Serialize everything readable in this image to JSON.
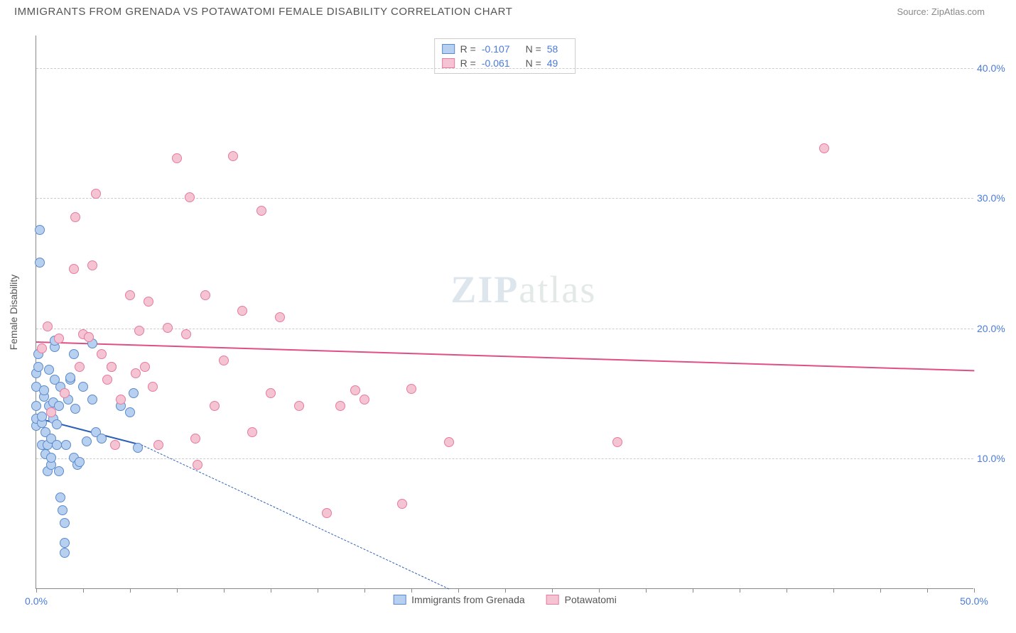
{
  "header": {
    "title": "IMMIGRANTS FROM GRENADA VS POTAWATOMI FEMALE DISABILITY CORRELATION CHART",
    "source_prefix": "Source: ",
    "source_name": "ZipAtlas.com"
  },
  "chart": {
    "type": "scatter",
    "x_axis": {
      "min": 0,
      "max": 50,
      "ticks_minor_step": 2.5,
      "label_min": "0.0%",
      "label_max": "50.0%"
    },
    "y_axis": {
      "min": 0,
      "max": 42.5,
      "title": "Female Disability",
      "gridlines": [
        {
          "value": 10,
          "label": "10.0%"
        },
        {
          "value": 20,
          "label": "20.0%"
        },
        {
          "value": 30,
          "label": "30.0%"
        },
        {
          "value": 40,
          "label": "40.0%"
        }
      ]
    },
    "watermark": {
      "part1": "ZIP",
      "part2": "atlas"
    },
    "series": [
      {
        "id": "grenada",
        "label": "Immigrants from Grenada",
        "fill": "#b8d0f0",
        "stroke": "#5a8acb",
        "trend": {
          "color": "#2d5fb8",
          "x1": 0,
          "y1": 13.2,
          "x2": 5.4,
          "y2": 11.2,
          "solid_until_x": 5.4,
          "dash_to_x": 22,
          "dash_to_y": 0
        },
        "stats": {
          "R": "-0.107",
          "N": "58"
        },
        "points": [
          [
            0.0,
            12.5
          ],
          [
            0.0,
            13.0
          ],
          [
            0.0,
            14.0
          ],
          [
            0.0,
            15.5
          ],
          [
            0.0,
            16.5
          ],
          [
            0.1,
            17.0
          ],
          [
            0.1,
            18.0
          ],
          [
            0.2,
            25.0
          ],
          [
            0.2,
            27.5
          ],
          [
            0.3,
            11.0
          ],
          [
            0.3,
            12.7
          ],
          [
            0.3,
            13.2
          ],
          [
            0.4,
            14.7
          ],
          [
            0.4,
            15.2
          ],
          [
            0.5,
            10.3
          ],
          [
            0.5,
            12.0
          ],
          [
            0.6,
            9.0
          ],
          [
            0.6,
            11.0
          ],
          [
            0.7,
            14.0
          ],
          [
            0.7,
            16.8
          ],
          [
            0.8,
            9.5
          ],
          [
            0.8,
            10.0
          ],
          [
            0.8,
            11.5
          ],
          [
            0.9,
            13.0
          ],
          [
            0.9,
            14.3
          ],
          [
            1.0,
            16.0
          ],
          [
            1.0,
            18.5
          ],
          [
            1.0,
            19.0
          ],
          [
            1.1,
            11.0
          ],
          [
            1.1,
            12.6
          ],
          [
            1.2,
            9.0
          ],
          [
            1.2,
            14.0
          ],
          [
            1.3,
            15.5
          ],
          [
            1.3,
            7.0
          ],
          [
            1.4,
            6.0
          ],
          [
            1.5,
            5.0
          ],
          [
            1.5,
            2.7
          ],
          [
            1.5,
            3.5
          ],
          [
            1.6,
            11.0
          ],
          [
            1.7,
            14.5
          ],
          [
            1.8,
            16.0
          ],
          [
            2.0,
            10.0
          ],
          [
            2.0,
            18.0
          ],
          [
            2.2,
            9.5
          ],
          [
            2.3,
            9.7
          ],
          [
            2.5,
            15.5
          ],
          [
            2.7,
            11.3
          ],
          [
            3.0,
            18.8
          ],
          [
            3.0,
            14.5
          ],
          [
            3.2,
            12.0
          ],
          [
            3.5,
            11.5
          ],
          [
            4.0,
            17.0
          ],
          [
            4.5,
            14.0
          ],
          [
            5.0,
            13.5
          ],
          [
            5.2,
            15.0
          ],
          [
            5.4,
            10.8
          ],
          [
            1.8,
            16.2
          ],
          [
            2.1,
            13.8
          ]
        ]
      },
      {
        "id": "potawatomi",
        "label": "Potawatomi",
        "fill": "#f5c4d2",
        "stroke": "#e77aa0",
        "trend": {
          "color": "#e04e86",
          "x1": 0,
          "y1": 19.0,
          "x2": 50,
          "y2": 16.8,
          "solid_until_x": 50
        },
        "stats": {
          "R": "-0.061",
          "N": "49"
        },
        "points": [
          [
            0.3,
            18.4
          ],
          [
            0.6,
            20.1
          ],
          [
            0.8,
            13.5
          ],
          [
            1.2,
            19.2
          ],
          [
            1.5,
            15.0
          ],
          [
            2.0,
            24.5
          ],
          [
            2.1,
            28.5
          ],
          [
            2.3,
            17.0
          ],
          [
            2.5,
            19.5
          ],
          [
            2.8,
            19.3
          ],
          [
            3.0,
            24.8
          ],
          [
            3.2,
            30.3
          ],
          [
            3.5,
            18.0
          ],
          [
            3.8,
            16.0
          ],
          [
            4.0,
            17.0
          ],
          [
            4.2,
            11.0
          ],
          [
            4.5,
            14.5
          ],
          [
            5.0,
            22.5
          ],
          [
            5.3,
            16.5
          ],
          [
            5.5,
            19.8
          ],
          [
            5.8,
            17.0
          ],
          [
            6.0,
            22.0
          ],
          [
            6.2,
            15.5
          ],
          [
            6.5,
            11.0
          ],
          [
            7.0,
            20.0
          ],
          [
            7.5,
            33.0
          ],
          [
            8.0,
            19.5
          ],
          [
            8.2,
            30.0
          ],
          [
            8.5,
            11.5
          ],
          [
            8.6,
            9.5
          ],
          [
            9.0,
            22.5
          ],
          [
            9.5,
            14.0
          ],
          [
            10.0,
            17.5
          ],
          [
            10.5,
            33.2
          ],
          [
            11.0,
            21.3
          ],
          [
            11.5,
            12.0
          ],
          [
            12.0,
            29.0
          ],
          [
            12.5,
            15.0
          ],
          [
            13.0,
            20.8
          ],
          [
            14.0,
            14.0
          ],
          [
            15.5,
            5.8
          ],
          [
            17.0,
            15.2
          ],
          [
            17.5,
            14.5
          ],
          [
            19.5,
            6.5
          ],
          [
            20.0,
            15.3
          ],
          [
            22.0,
            11.2
          ],
          [
            31.0,
            11.2
          ],
          [
            42.0,
            33.8
          ],
          [
            16.2,
            14.0
          ]
        ]
      }
    ],
    "legend_top": {
      "R_label": "R =",
      "N_label": "N ="
    },
    "background_color": "#ffffff",
    "grid_color": "#cccccc",
    "axis_color": "#888888",
    "tick_label_color": "#4a7bd8"
  }
}
